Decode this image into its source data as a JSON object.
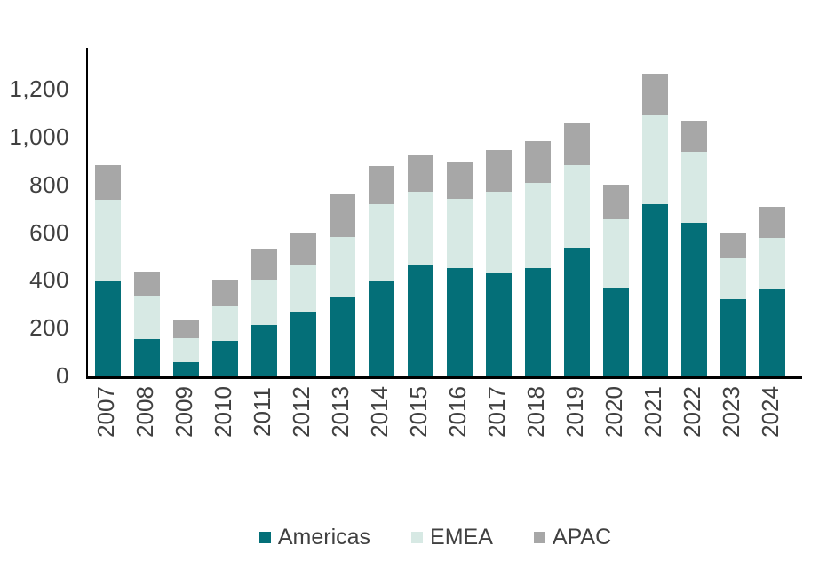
{
  "chart_data": {
    "type": "bar",
    "stacked": true,
    "title": "",
    "categories": [
      "2007",
      "2008",
      "2009",
      "2010",
      "2011",
      "2012",
      "2013",
      "2014",
      "2015",
      "2016",
      "2017",
      "2018",
      "2019",
      "2020",
      "2021",
      "2022",
      "2023",
      "2024"
    ],
    "series": [
      {
        "name": "Americas",
        "color": "#046f78",
        "values": [
          400,
          155,
          60,
          150,
          215,
          270,
          330,
          400,
          465,
          455,
          435,
          455,
          540,
          370,
          720,
          645,
          325,
          365
        ]
      },
      {
        "name": "EMEA",
        "color": "#d7e9e4",
        "values": [
          340,
          185,
          100,
          145,
          190,
          200,
          255,
          320,
          310,
          290,
          340,
          355,
          345,
          290,
          375,
          295,
          170,
          215
        ]
      },
      {
        "name": "APAC",
        "color": "#a7a7a7",
        "values": [
          145,
          100,
          80,
          110,
          130,
          130,
          180,
          160,
          150,
          150,
          175,
          175,
          175,
          145,
          175,
          130,
          105,
          130
        ]
      }
    ],
    "y_axis": {
      "tick_labels": [
        "0",
        "200",
        "400",
        "600",
        "800",
        "1,000",
        "1,200"
      ],
      "tick_values": [
        0,
        200,
        400,
        600,
        800,
        1000,
        1200
      ],
      "min": 0,
      "max": 1200
    },
    "x_axis": {
      "label_rotation_degrees": -90
    },
    "legend": {
      "position": "bottom",
      "entries": [
        "Americas",
        "EMEA",
        "APAC"
      ]
    },
    "grid": false
  },
  "colors": {
    "americas": "#046f78",
    "emea": "#d7e9e4",
    "apac": "#a7a7a7",
    "axis_line": "#000000",
    "label_text": "#404040",
    "background": "#ffffff"
  }
}
